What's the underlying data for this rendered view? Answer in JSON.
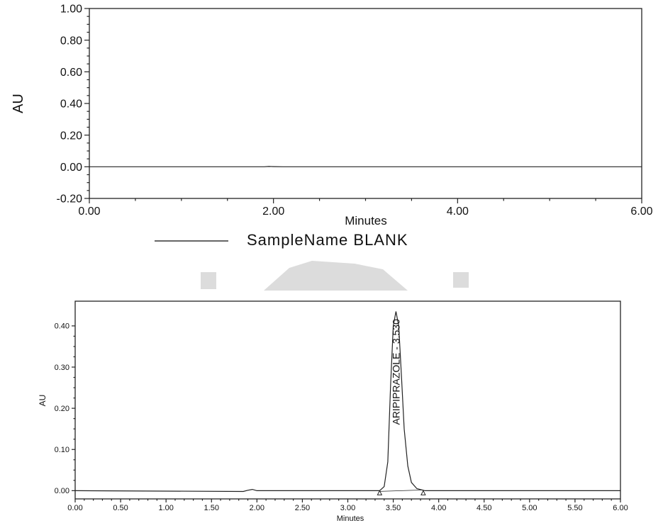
{
  "chart_data": [
    {
      "type": "line",
      "title": "",
      "xlabel": "Minutes",
      "ylabel": "AU",
      "xlim": [
        0,
        6
      ],
      "ylim": [
        -0.2,
        1.0
      ],
      "x_ticks": [
        "0.00",
        "2.00",
        "4.00",
        "6.00"
      ],
      "y_ticks": [
        "-0.20",
        "0.00",
        "0.20",
        "0.40",
        "0.60",
        "0.80",
        "1.00"
      ],
      "grid": false,
      "legend": {
        "position": "bottom",
        "entries": [
          "SampleName BLANK"
        ]
      },
      "series": [
        {
          "name": "SampleName BLANK",
          "x": [
            0,
            1.9,
            1.95,
            2.0,
            2.1,
            6
          ],
          "y": [
            0,
            0,
            0.002,
            0.001,
            0,
            0
          ]
        }
      ]
    },
    {
      "type": "line",
      "title": "",
      "xlabel": "Minutes",
      "ylabel": "AU",
      "xlim": [
        0,
        6
      ],
      "ylim": [
        -0.02,
        0.46
      ],
      "x_ticks": [
        "0.00",
        "0.50",
        "1.00",
        "1.50",
        "2.00",
        "2.50",
        "3.00",
        "3.50",
        "4.00",
        "4.50",
        "5.00",
        "5.50",
        "6.00"
      ],
      "y_ticks": [
        "0.00",
        "0.10",
        "0.20",
        "0.30",
        "0.40"
      ],
      "grid": false,
      "series": [
        {
          "x": [
            0,
            1.85,
            1.9,
            1.95,
            2.0,
            3.35,
            3.4,
            3.44,
            3.47,
            3.5,
            3.53,
            3.56,
            3.59,
            3.62,
            3.66,
            3.7,
            3.76,
            3.85,
            6
          ],
          "y": [
            0,
            -0.002,
            0.001,
            0.003,
            0,
            0,
            0.01,
            0.07,
            0.25,
            0.4,
            0.435,
            0.4,
            0.28,
            0.15,
            0.06,
            0.02,
            0.005,
            0,
            0
          ]
        }
      ],
      "annotations": [
        {
          "text": "ARIPIPRAZOLE - 3.530",
          "x": 3.53,
          "y": 0.435
        }
      ],
      "baseline_markers": [
        {
          "x": 3.35,
          "y": 0
        },
        {
          "x": 3.83,
          "y": 0
        }
      ]
    }
  ]
}
